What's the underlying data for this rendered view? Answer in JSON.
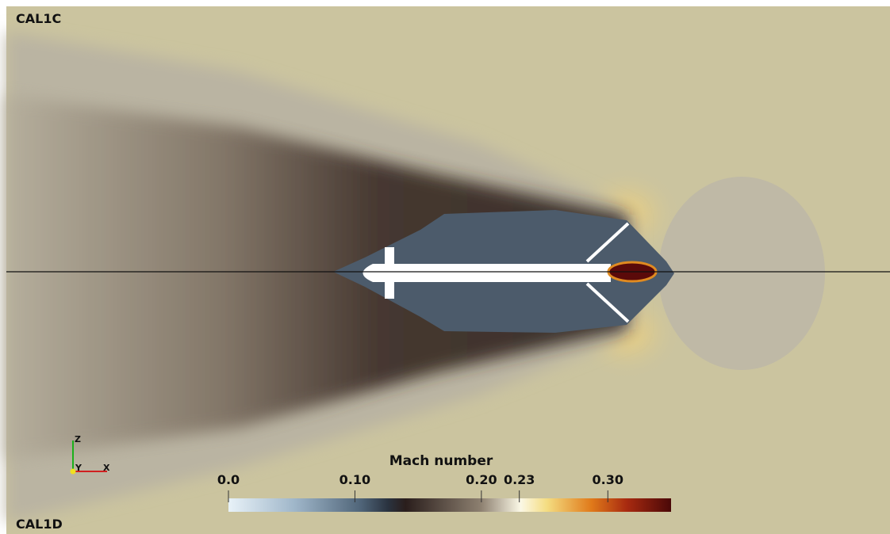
{
  "labels": {
    "top_left": "CAL1C",
    "bottom_left": "CAL1D"
  },
  "colorbar": {
    "title": "Mach number",
    "range": [
      0,
      0.35
    ],
    "ticks": [
      {
        "value": 0,
        "label": "0.0"
      },
      {
        "value": 0.1,
        "label": "0.10"
      },
      {
        "value": 0.2,
        "label": "0.20"
      },
      0.23,
      {
        "value": 0.3,
        "label": "0.30"
      }
    ]
  },
  "axes_triad": {
    "z": "Z",
    "y": "Y",
    "x": "X"
  }
}
